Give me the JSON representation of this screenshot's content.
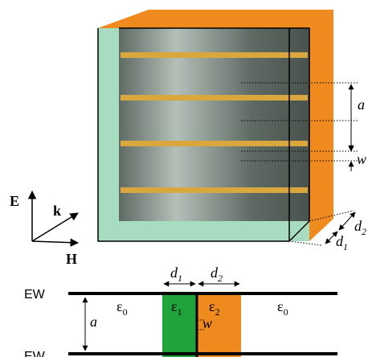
{
  "box": {
    "a": "a",
    "w": "w",
    "d2": {
      "base": "d",
      "sub": "2"
    },
    "d1": {
      "base": "d",
      "sub": "1"
    }
  },
  "axes": {
    "E": "E",
    "k": "k",
    "H": "H"
  },
  "waveguide": {
    "top_wall": "EW",
    "bottom_wall": "EW",
    "a": "a",
    "w": "w",
    "d1": {
      "base": "d",
      "sub": "1"
    },
    "d2": {
      "base": "d",
      "sub": "2"
    },
    "eps_left": {
      "base": "ε",
      "sub": "0"
    },
    "eps1": {
      "base": "ε",
      "sub": "1"
    },
    "eps2": {
      "base": "ε",
      "sub": "2"
    },
    "eps_right": {
      "base": "ε",
      "sub": "0"
    }
  }
}
